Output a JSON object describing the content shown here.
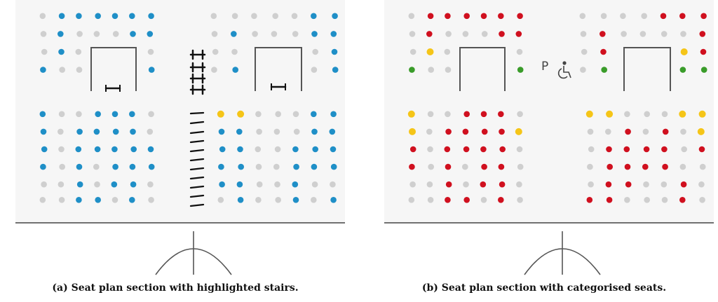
{
  "colors": {
    "background": "#f6f6f6",
    "grey": "#cfcfcf",
    "blue": "#1f8fc7",
    "red": "#d0101f",
    "yellow": "#f5c518",
    "green": "#3a9c2a",
    "line": "#555555"
  },
  "panel_a": {
    "caption": "(a) Seat plan section with highlighted stairs.",
    "seats": {
      "top_left": [
        "GBBBBBB",
        "GBGGGBB",
        "GBGSSSG",
        "BGGSSSB"
      ],
      "top_right": [
        "GGGGGBB",
        "GBGGGBB",
        "GGSSSGB",
        "GBSSSGB"
      ],
      "bottom_left": [
        "BGGBBBG",
        "BGBBBBG",
        "BGBBBBB",
        "BGBGBBB",
        "GGBGBBG",
        "GGBBGBG"
      ],
      "bottom_right": [
        "YYGGGBB",
        "BBGGGBB",
        "BBGGBBB",
        "BBGGBBB",
        "BBGGBGG",
        "GBGGBGB"
      ]
    }
  },
  "panel_b": {
    "caption": "(b) Seat plan section with categorised seats.",
    "parking_label": "P",
    "seats": {
      "top_left": [
        "GRRRRRR",
        "GRGGGRR",
        "GYGSSSG",
        "NGGSSSN"
      ],
      "top_right": [
        "GGGGRRR",
        "GRGGGGR",
        "GRSSSYR",
        "GNSSSNN"
      ],
      "bottom_left": [
        "YGGRRRG",
        "YGRRRRY",
        "RGRRRRG",
        "RGRGRRG",
        "GGRGRRG",
        "GGRRGRG"
      ],
      "bottom_right": [
        "YYGGGYY",
        "GGRGRGY",
        "GRRRRGR",
        "GRRRRGG",
        "GRRGGRG",
        "RRGGGRG"
      ]
    }
  }
}
